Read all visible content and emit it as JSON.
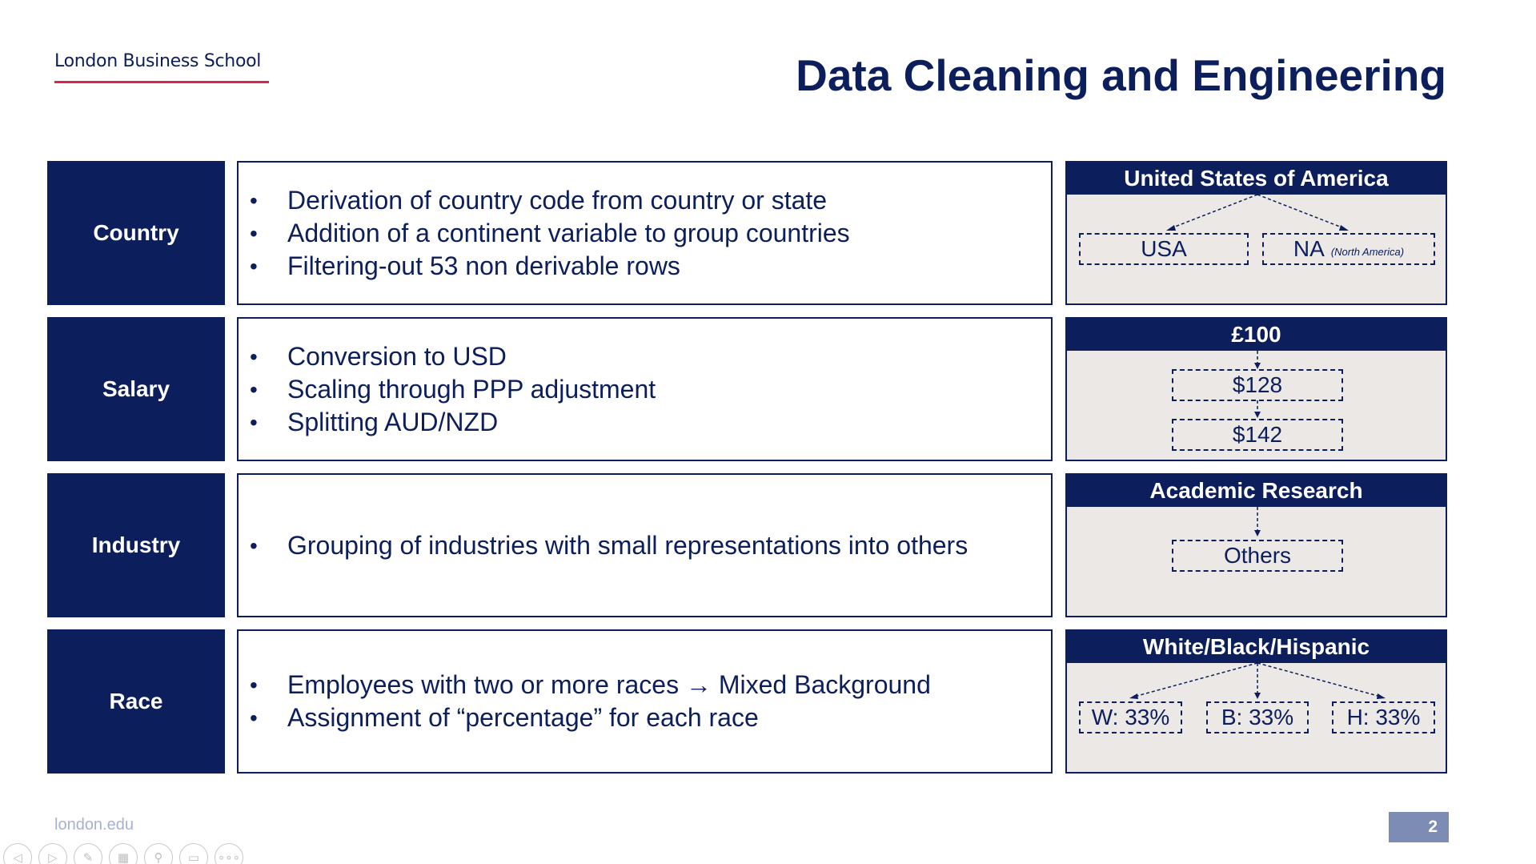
{
  "header": {
    "logo_text": "London Business School",
    "title": "Data Cleaning and Engineering"
  },
  "rows": [
    {
      "label": "Country",
      "bullets": [
        "Derivation of country code from country or state",
        "Addition of a continent variable to group countries",
        "Filtering-out 53 non derivable rows"
      ],
      "example": {
        "title": "United States of America",
        "nodes": [
          "USA",
          "NA"
        ],
        "note": "(North America)"
      }
    },
    {
      "label": "Salary",
      "bullets": [
        "Conversion to USD",
        "Scaling through PPP adjustment",
        "Splitting AUD/NZD"
      ],
      "example": {
        "title": "£100",
        "nodes": [
          "$128",
          "$142"
        ]
      }
    },
    {
      "label": "Industry",
      "bullets": [
        "Grouping of industries with small representations into others"
      ],
      "example": {
        "title": "Academic Research",
        "nodes": [
          "Others"
        ]
      }
    },
    {
      "label": "Race",
      "bullets": [
        "Employees with two or more races → Mixed Background",
        "Assignment of “percentage” for each race"
      ],
      "example": {
        "title": "White/Black/Hispanic",
        "nodes": [
          "W: 33%",
          "B: 33%",
          "H: 33%"
        ]
      }
    }
  ],
  "footer": {
    "url": "london.edu",
    "page_number": "2"
  },
  "controls": [
    {
      "icon": "previous-icon",
      "glyph": "◁"
    },
    {
      "icon": "next-icon",
      "glyph": "▷"
    },
    {
      "icon": "pen-icon",
      "glyph": "✎"
    },
    {
      "icon": "slides-icon",
      "glyph": "▦"
    },
    {
      "icon": "zoom-icon",
      "glyph": "⚲"
    },
    {
      "icon": "subtitles-icon",
      "glyph": "▭"
    },
    {
      "icon": "more-icon",
      "glyph": "∘∘∘"
    }
  ],
  "colors": {
    "navy": "#0c1e5b",
    "accent_red": "#d6284a",
    "example_bg": "#ebe8e5",
    "page_badge": "#7c8cb5"
  }
}
